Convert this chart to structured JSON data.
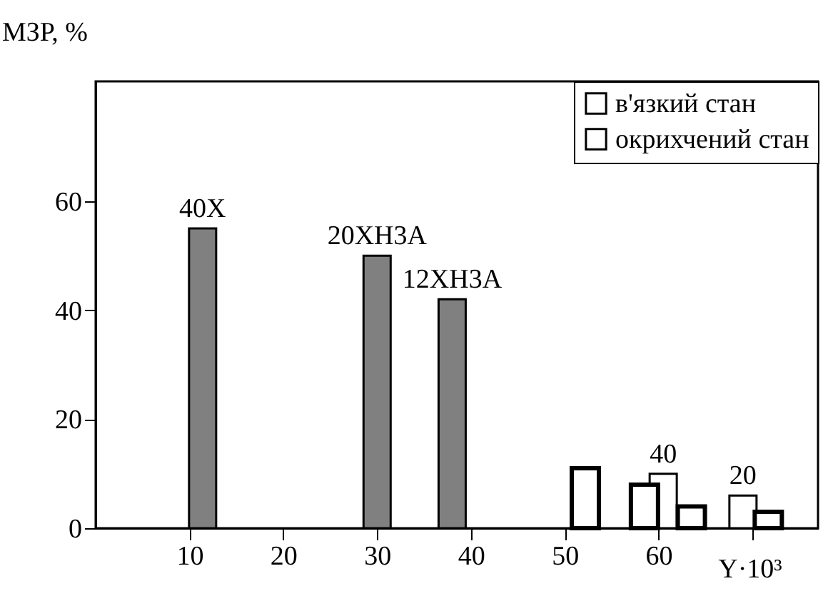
{
  "chart_data": {
    "type": "bar",
    "ylabel": "МЗР, %",
    "xlim": [
      0,
      77
    ],
    "ylim": [
      0,
      82
    ],
    "xlabel": "Y·10³",
    "xticks": [
      10,
      20,
      30,
      40,
      50,
      60,
      {
        "value": 70,
        "label": null
      }
    ],
    "yticks": [
      0,
      20,
      40,
      60
    ],
    "legend": "top right",
    "grid": false,
    "series": [
      {
        "color": "#808080",
        "x": [
          11.4,
          30,
          38
        ],
        "values": [
          55,
          50,
          42
        ]
      },
      {
        "name": "в'язкий стан",
        "color": "#ffffff",
        "x": [
          52.2,
          58.5,
          63.5,
          71.7
        ],
        "values": [
          11,
          8,
          4,
          3
        ]
      },
      {
        "name": "окрихчений стан",
        "color": "#ffffff",
        "x": [
          60.5,
          69
        ],
        "values": [
          10,
          6
        ]
      }
    ],
    "annotations": [
      {
        "text": "40X",
        "x": 11.4,
        "y": 55
      },
      {
        "text": "20XH3A",
        "x": 30,
        "y": 50
      },
      {
        "text": "12XH3A",
        "x": 38,
        "y": 42
      },
      {
        "text": "40",
        "x": 60.5,
        "y": 10
      },
      {
        "text": "20",
        "x": 69,
        "y": 6
      }
    ]
  }
}
